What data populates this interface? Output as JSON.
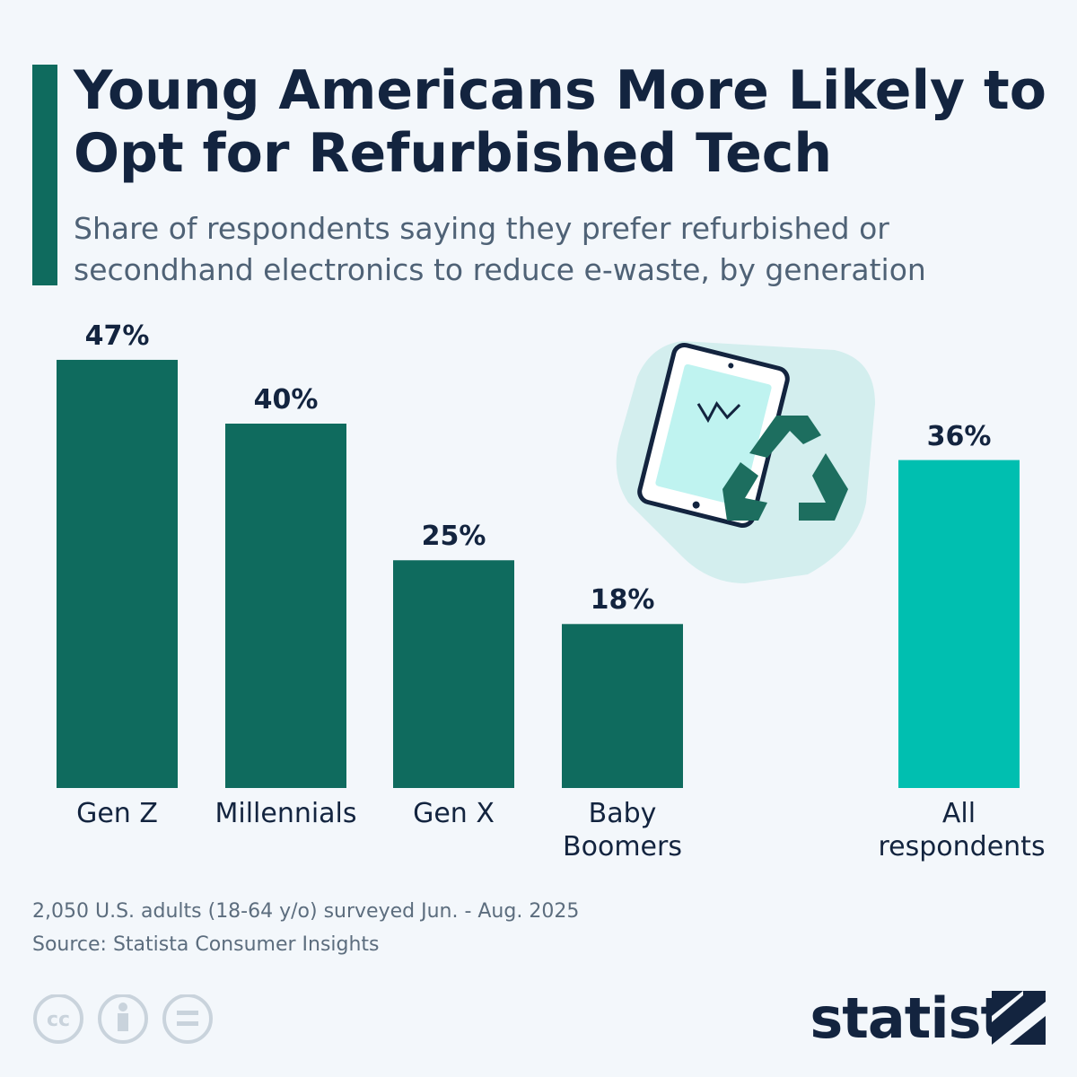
{
  "chart_data": {
    "type": "bar",
    "title": "Young Americans More Likely to Opt for Refurbished Tech",
    "subtitle": "Share of respondents saying they prefer refurbished or secondhand electronics to reduce e-waste, by generation",
    "categories": [
      "Gen Z",
      "Millennials",
      "Gen X",
      "Baby Boomers",
      "All respondents"
    ],
    "values": [
      47,
      40,
      25,
      18,
      36
    ],
    "value_labels": [
      "47%",
      "40%",
      "25%",
      "18%",
      "36%"
    ],
    "colors": [
      "#0f6b5e",
      "#0f6b5e",
      "#0f6b5e",
      "#0f6b5e",
      "#00bfb0"
    ],
    "note": "2,050 U.S. adults (18-64 y/o) surveyed Jun. - Aug. 2025",
    "source": "Source: Statista Consumer Insights",
    "brand": "statista"
  }
}
